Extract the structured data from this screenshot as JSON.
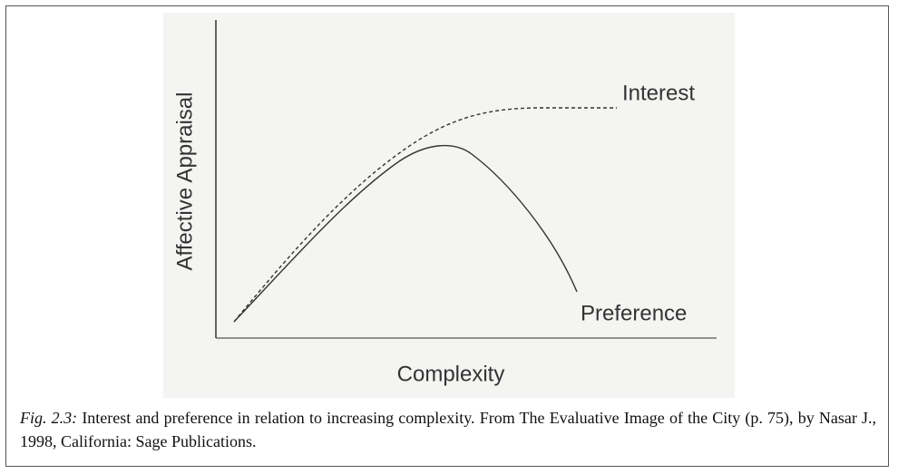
{
  "figure": {
    "y_label": "Affective Appraisal",
    "x_label": "Complexity",
    "curve_labels": [
      "Interest",
      "Preference"
    ]
  },
  "caption": {
    "label": "Fig. 2.3:",
    "text": "Interest and preference in relation to increasing complexity. From The Evaluative Image of the City (p. 75), by Nasar J., 1998, California: Sage Publications."
  }
}
